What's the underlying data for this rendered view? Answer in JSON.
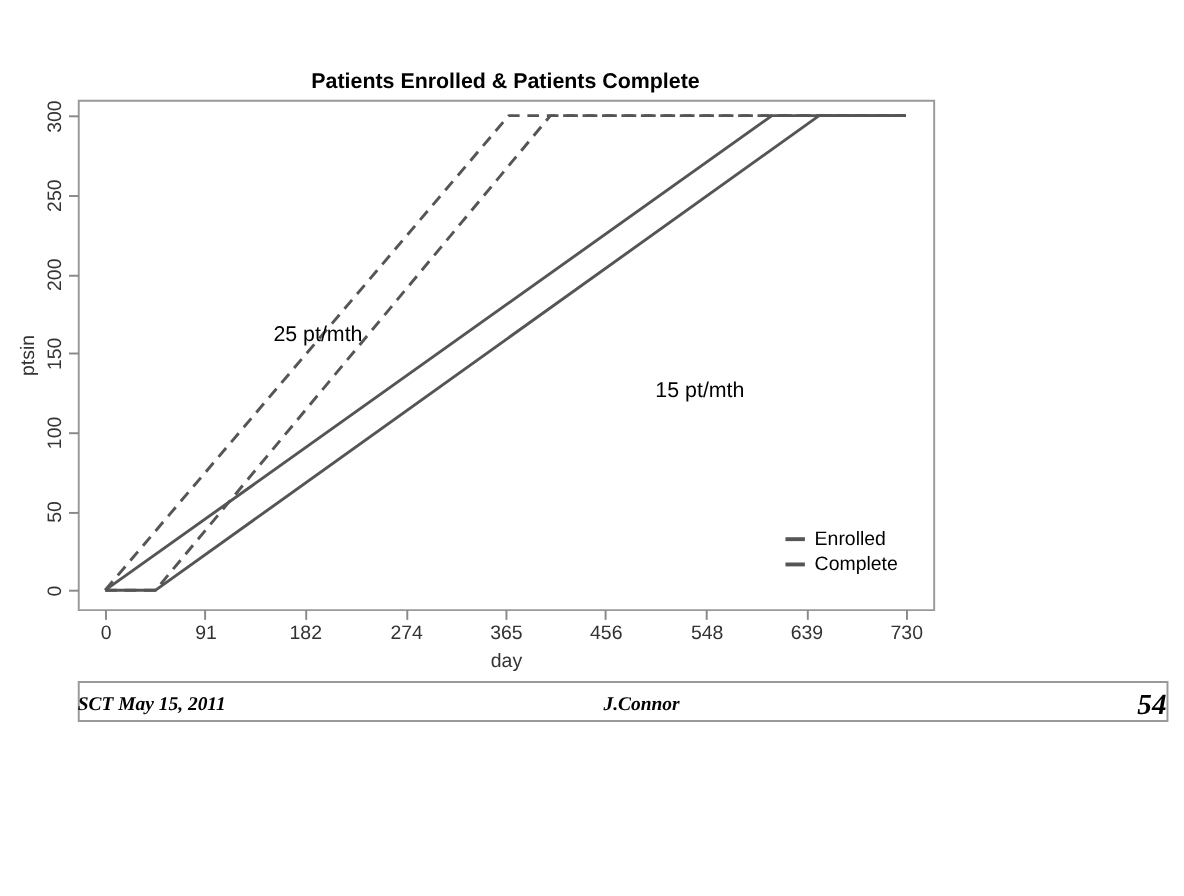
{
  "chart_data": {
    "type": "line",
    "title": "Patients Enrolled & Patients Complete",
    "xlabel": "day",
    "ylabel": "ptsin",
    "series": [
      {
        "name": "Enrolled",
        "color": "#555555",
        "line_style": "solid",
        "x": [
          0,
          608,
          730
        ],
        "values": [
          0,
          300,
          300
        ]
      },
      {
        "name": "Complete",
        "color": "#555555",
        "line_style": "solid",
        "x": [
          0,
          46,
          651,
          730
        ],
        "values": [
          0,
          0,
          300,
          300
        ]
      },
      {
        "color": "#555555",
        "line_style": "dashed",
        "x": [
          0,
          368,
          730
        ],
        "values": [
          0,
          300,
          300
        ]
      },
      {
        "color": "#555555",
        "line_style": "dashed",
        "x": [
          0,
          46,
          406,
          730
        ],
        "values": [
          0,
          0,
          300,
          300
        ]
      }
    ],
    "xlim": [
      -25,
      755
    ],
    "ylim": [
      -12,
      310
    ],
    "xticks": [
      0,
      91,
      182,
      274,
      365,
      456,
      548,
      639,
      730
    ],
    "yticks": [
      0,
      50,
      100,
      150,
      200,
      250,
      300
    ],
    "grid": false,
    "legend": "bottom right",
    "marker": "none",
    "annotations": [
      {
        "text": "25 pt/mth",
        "x": 194,
        "y": 161
      },
      "15 pt/mth",
      "SCT May 15, 2011",
      "J.Connor",
      "54"
    ]
  }
}
